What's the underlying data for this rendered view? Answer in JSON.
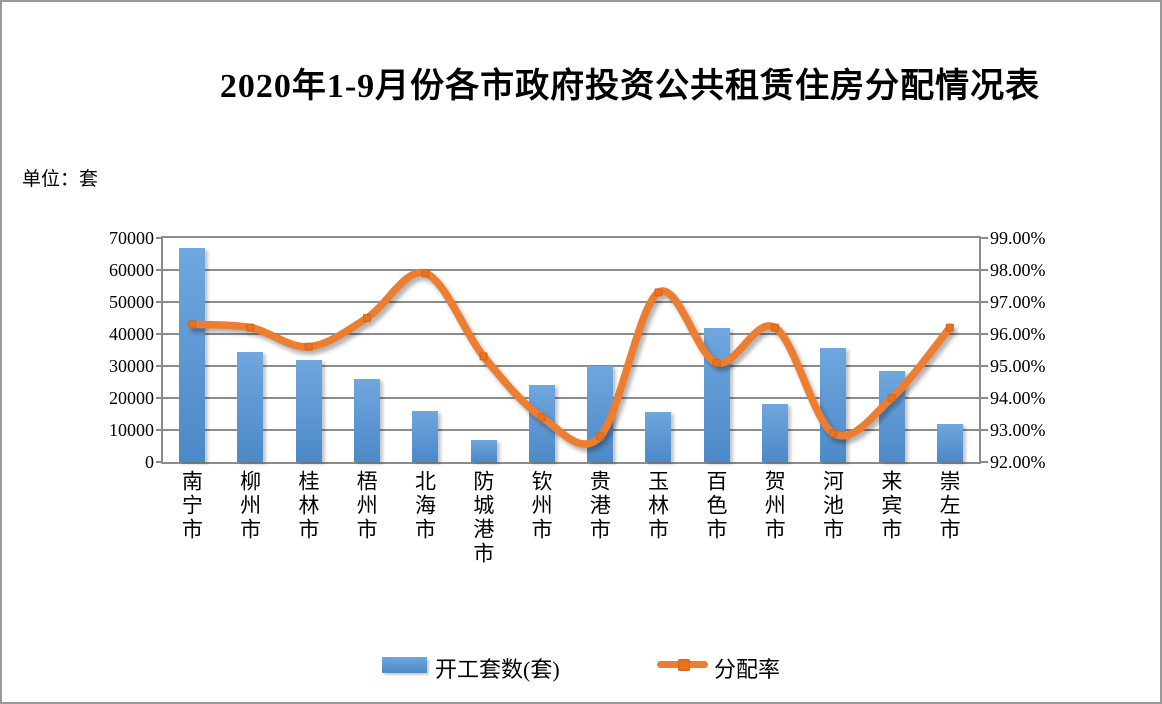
{
  "figure": {
    "title": "2020年1-9月份各市政府投资公共租赁住房分配情况表",
    "unit_label": "单位：套"
  },
  "chart_data": {
    "type": "combo",
    "title": "2020年1-9月份各市政府投资公共租赁住房分配情况表",
    "unit": "套",
    "categories": [
      "南宁市",
      "柳州市",
      "桂林市",
      "梧州市",
      "北海市",
      "防城港市",
      "钦州市",
      "贵港市",
      "玉林市",
      "百色市",
      "贺州市",
      "河池市",
      "来宾市",
      "崇左市"
    ],
    "series": [
      {
        "name": "开工套数(套)",
        "type": "bar",
        "axis": "left",
        "color": "#5B9BD5",
        "values": [
          67000,
          34500,
          32000,
          26000,
          16000,
          7000,
          24000,
          30000,
          15500,
          42000,
          18000,
          35500,
          28500,
          12000
        ]
      },
      {
        "name": "分配率",
        "type": "line",
        "axis": "right",
        "color": "#ED7D31",
        "values": [
          96.3,
          96.2,
          95.6,
          96.5,
          97.9,
          95.3,
          93.4,
          92.8,
          97.3,
          95.1,
          96.2,
          92.9,
          94.0,
          96.2
        ]
      }
    ],
    "left_axis": {
      "min": 0,
      "max": 70000,
      "step": 10000,
      "tick_labels": [
        "0",
        "10000",
        "20000",
        "30000",
        "40000",
        "50000",
        "60000",
        "70000"
      ]
    },
    "right_axis": {
      "min": 92,
      "max": 99,
      "step": 1,
      "tick_labels": [
        "92.00%",
        "93.00%",
        "94.00%",
        "95.00%",
        "96.00%",
        "97.00%",
        "98.00%",
        "99.00%"
      ]
    },
    "grid": true,
    "legend_position": "bottom"
  },
  "colors": {
    "bar_top": "#6FA7DE",
    "bar_bottom": "#4C89C8",
    "line": "#ED7D31",
    "marker": "#E8721F",
    "marker_edge": "#D2641A",
    "grid": "#8C8C8C",
    "frame_border": "#999999",
    "text": "#000000"
  }
}
